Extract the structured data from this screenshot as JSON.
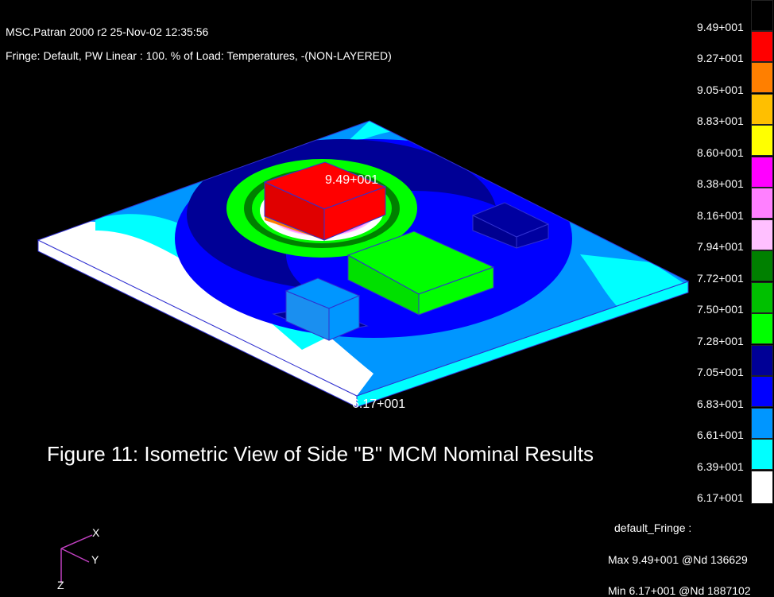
{
  "header": {
    "line1": "MSC.Patran 2000 r2 25-Nov-02 12:35:56",
    "line2": "Fringe: Default, PW Linear : 100. % of Load: Temperatures, -(NON-LAYERED)"
  },
  "legend": {
    "ticks": [
      "9.49+001",
      "9.27+001",
      "9.05+001",
      "8.83+001",
      "8.60+001",
      "8.38+001",
      "8.16+001",
      "7.94+001",
      "7.72+001",
      "7.50+001",
      "7.28+001",
      "7.05+001",
      "6.83+001",
      "6.61+001",
      "6.39+001",
      "6.17+001"
    ],
    "colors": [
      "#000000",
      "#ff0000",
      "#ff7f00",
      "#ffbf00",
      "#ffff00",
      "#ff00ff",
      "#ff80ff",
      "#ffc0ff",
      "#008000",
      "#00c000",
      "#00ff00",
      "#000096",
      "#0000ff",
      "#0096ff",
      "#00ffff",
      "#ffffff"
    ]
  },
  "model": {
    "max_label": "9.49+001",
    "min_label": "6.17+001"
  },
  "caption": "Figure 11: Isometric View of Side \"B\" MCM Nominal Results",
  "fringe_info": {
    "name": "default_Fringe :",
    "max": "Max 9.49+001 @Nd 136629",
    "min": "Min 6.17+001 @Nd 1887102"
  },
  "axes": {
    "x": "X",
    "y": "Y",
    "z": "Z",
    "triad_color": "#c040c0"
  }
}
